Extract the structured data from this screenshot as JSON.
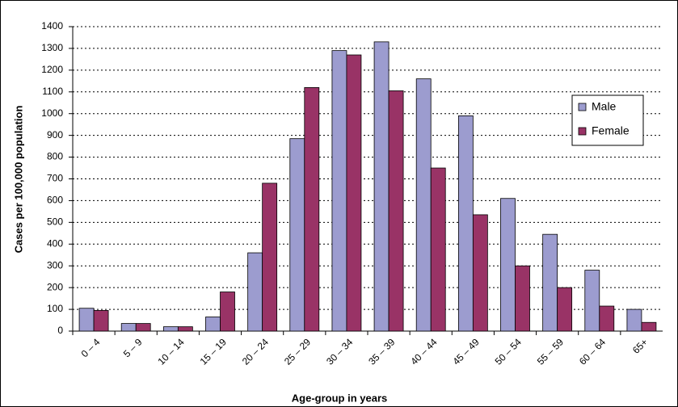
{
  "chart_data": {
    "type": "bar",
    "x_label": "Age-group in years",
    "y_label": "Cases per 100,000 population",
    "categories": [
      "0 – 4",
      "5 – 9",
      "10 – 14",
      "15 – 19",
      "20 – 24",
      "25 – 29",
      "30 – 34",
      "35 – 39",
      "40 – 44",
      "45 – 49",
      "50 – 54",
      "55 – 59",
      "60 – 64",
      "65+"
    ],
    "series": [
      {
        "name": "Male",
        "color": "#9c9ccf",
        "values": [
          105,
          35,
          20,
          65,
          360,
          885,
          1290,
          1330,
          1160,
          990,
          610,
          445,
          280,
          100
        ]
      },
      {
        "name": "Female",
        "color": "#993366",
        "values": [
          95,
          35,
          20,
          180,
          680,
          1120,
          1270,
          1105,
          750,
          535,
          300,
          200,
          115,
          40
        ]
      }
    ],
    "ylim": [
      0,
      1400
    ],
    "yticks": [
      0,
      100,
      200,
      300,
      400,
      500,
      600,
      700,
      800,
      900,
      1000,
      1100,
      1200,
      1300,
      1400
    ],
    "grid": true,
    "legend": "right"
  }
}
